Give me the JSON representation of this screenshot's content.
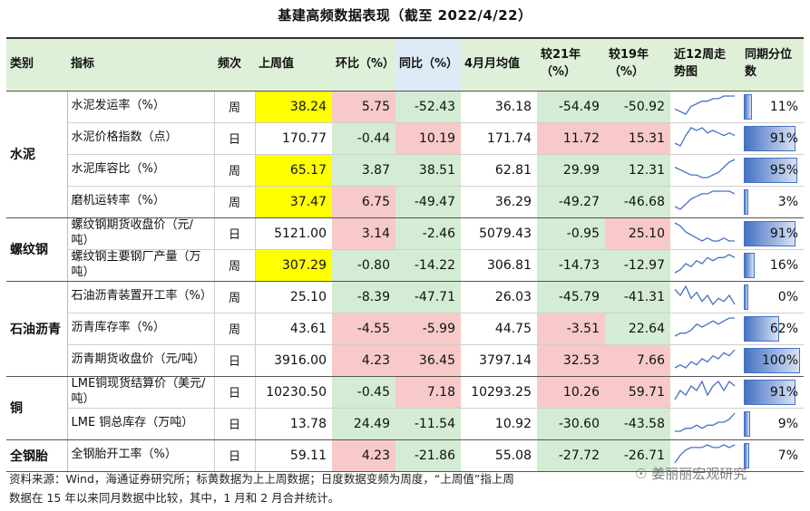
{
  "title": "基建高频数据表现（截至 2022/4/22）",
  "headers": [
    "类别",
    "指标",
    "频次",
    "上周值",
    "环比（%）",
    "同比（%）",
    "4月月均值",
    "较21年（%）",
    "较19年（%）",
    "近12周走势图",
    "同期分位数"
  ],
  "rows": [
    {
      "cat": "水泥",
      "ind": "水泥发运率（%）",
      "freq": "周",
      "last": "38.24",
      "wow": "5.75",
      "yoy": "-52.43",
      "avg": "36.18",
      "v21": "-54.49",
      "v19": "-50.92",
      "pct": "11%",
      "pctv": 11,
      "c": [
        "yellow",
        "red",
        "green",
        "",
        "green",
        "green"
      ],
      "trend": [
        4,
        3,
        2,
        5,
        6,
        7,
        7,
        8,
        8,
        9,
        9,
        9
      ]
    },
    {
      "cat": "",
      "ind": "水泥价格指数（点）",
      "freq": "日",
      "last": "170.77",
      "wow": "-0.44",
      "yoy": "10.19",
      "avg": "171.74",
      "v21": "11.72",
      "v19": "15.31",
      "pct": "91%",
      "pctv": 91,
      "c": [
        "",
        "green",
        "red",
        "",
        "red",
        "red"
      ],
      "trend": [
        3,
        2,
        6,
        9,
        8,
        9,
        7,
        8,
        7,
        6,
        7,
        6
      ]
    },
    {
      "cat": "",
      "ind": "水泥库容比（%）",
      "freq": "周",
      "last": "65.17",
      "wow": "3.87",
      "yoy": "38.51",
      "avg": "62.81",
      "v21": "29.99",
      "v19": "12.31",
      "pct": "95%",
      "pctv": 95,
      "c": [
        "yellow",
        "green",
        "green",
        "",
        "green",
        "green"
      ],
      "trend": [
        6,
        5,
        4,
        3,
        3,
        2,
        2,
        3,
        4,
        6,
        8,
        9
      ]
    },
    {
      "cat": "",
      "ind": "磨机运转率（%）",
      "freq": "周",
      "last": "37.47",
      "wow": "6.75",
      "yoy": "-49.47",
      "avg": "36.29",
      "v21": "-49.27",
      "v19": "-46.68",
      "pct": "3%",
      "pctv": 3,
      "c": [
        "yellow",
        "red",
        "green",
        "",
        "green",
        "green"
      ],
      "trend": [
        3,
        2,
        4,
        6,
        7,
        8,
        8,
        9,
        9,
        9,
        9,
        8
      ]
    },
    {
      "cat": "螺纹钢",
      "ind": "螺纹钢期货收盘价（元/吨）",
      "freq": "日",
      "last": "5121.00",
      "wow": "3.14",
      "yoy": "-2.46",
      "avg": "5079.43",
      "v21": "-0.95",
      "v19": "25.10",
      "pct": "91%",
      "pctv": 91,
      "c": [
        "",
        "red",
        "green",
        "",
        "green",
        "red"
      ],
      "trend": [
        9,
        8,
        6,
        5,
        4,
        3,
        4,
        3,
        3,
        4,
        3,
        3
      ]
    },
    {
      "cat": "",
      "ind": "螺纹钢主要钢厂产量（万吨）",
      "freq": "周",
      "last": "307.29",
      "wow": "-0.80",
      "yoy": "-14.22",
      "avg": "306.81",
      "v21": "-14.73",
      "v19": "-12.97",
      "pct": "16%",
      "pctv": 16,
      "c": [
        "yellow",
        "green",
        "green",
        "",
        "green",
        "green"
      ],
      "trend": [
        3,
        4,
        6,
        5,
        7,
        6,
        8,
        7,
        8,
        8,
        9,
        8
      ]
    },
    {
      "cat": "石油沥青",
      "ind": "石油沥青装置开工率（%）",
      "freq": "周",
      "last": "25.10",
      "wow": "-8.39",
      "yoy": "-47.71",
      "avg": "26.03",
      "v21": "-45.79",
      "v19": "-41.31",
      "pct": "0%",
      "pctv": 0,
      "c": [
        "",
        "green",
        "green",
        "",
        "green",
        "green"
      ],
      "trend": [
        8,
        6,
        9,
        5,
        7,
        4,
        6,
        3,
        5,
        4,
        6,
        3
      ]
    },
    {
      "cat": "",
      "ind": "沥青库存率（%）",
      "freq": "周",
      "last": "43.61",
      "wow": "-4.55",
      "yoy": "-5.99",
      "avg": "44.75",
      "v21": "-3.51",
      "v19": "22.64",
      "pct": "62%",
      "pctv": 62,
      "c": [
        "",
        "red",
        "red",
        "",
        "red",
        "green"
      ],
      "trend": [
        3,
        4,
        4,
        5,
        7,
        6,
        7,
        8,
        7,
        8,
        9,
        9
      ]
    },
    {
      "cat": "",
      "ind": "沥青期货收盘价（元/吨）",
      "freq": "日",
      "last": "3916.00",
      "wow": "4.23",
      "yoy": "36.45",
      "avg": "3797.14",
      "v21": "32.53",
      "v19": "7.66",
      "pct": "100%",
      "pctv": 100,
      "c": [
        "",
        "red",
        "red",
        "",
        "red",
        "red"
      ],
      "trend": [
        3,
        4,
        3,
        5,
        4,
        6,
        5,
        7,
        6,
        8,
        7,
        9
      ]
    },
    {
      "cat": "铜",
      "ind": "LME铜现货结算价（美元/吨）",
      "freq": "日",
      "last": "10230.50",
      "wow": "-0.45",
      "yoy": "7.18",
      "avg": "10293.25",
      "v21": "10.26",
      "v19": "59.71",
      "pct": "91%",
      "pctv": 91,
      "c": [
        "",
        "green",
        "red",
        "",
        "red",
        "red"
      ],
      "trend": [
        4,
        6,
        5,
        7,
        6,
        8,
        5,
        7,
        8,
        6,
        8,
        7
      ]
    },
    {
      "cat": "",
      "ind": "LME 铜总库存（万吨）",
      "freq": "日",
      "last": "13.78",
      "wow": "24.49",
      "yoy": "-11.54",
      "avg": "10.92",
      "v21": "-30.60",
      "v19": "-43.58",
      "pct": "9%",
      "pctv": 9,
      "c": [
        "",
        "green",
        "green",
        "",
        "green",
        "green"
      ],
      "trend": [
        3,
        3,
        4,
        4,
        5,
        4,
        5,
        5,
        6,
        6,
        7,
        9
      ]
    },
    {
      "cat": "全钢胎",
      "ind": "全钢胎开工率（%）",
      "freq": "日",
      "last": "59.11",
      "wow": "4.23",
      "yoy": "-21.86",
      "avg": "55.08",
      "v21": "-27.72",
      "v19": "-26.71",
      "pct": "7%",
      "pctv": 7,
      "c": [
        "",
        "red",
        "green",
        "",
        "green",
        "green"
      ],
      "trend": [
        2,
        5,
        7,
        8,
        8,
        8,
        9,
        8,
        8,
        9,
        8,
        9
      ]
    }
  ],
  "note": "资料来源：Wind，海通证券研究所；标黄数据为上上周数据；日度数据变频为周度，“上周值”指上周",
  "note2": "数据在 15 年以来同月数据中比较，其中，1 月和 2 月合并统计。",
  "watermark": "姜丽丽宏观研究"
}
